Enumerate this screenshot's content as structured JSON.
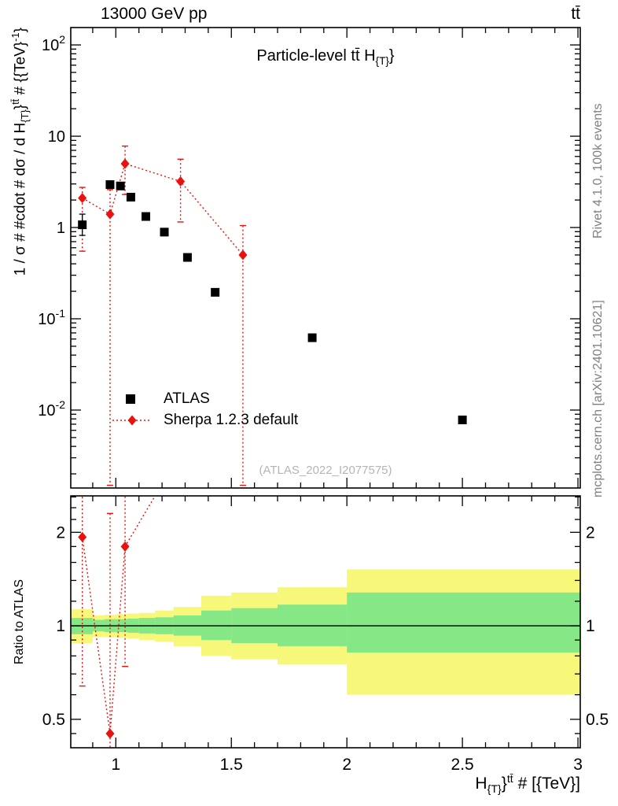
{
  "header": {
    "left": "13000 GeV pp",
    "right": "tt̄"
  },
  "side_notes": {
    "top_right": "Rivet 4.1.0,  100k events",
    "bottom_right": "mcplots.cern.ch [arXiv:2401.10621]",
    "color": "#808080"
  },
  "watermark": {
    "text": "(ATLAS_2022_I2077575)",
    "color": "#b5b5b5"
  },
  "labels": {
    "plot_title_segments": [
      {
        "t": "Particle-level tt̄  H"
      },
      {
        "t": "{T}",
        "s": "sub"
      },
      {
        "t": "}"
      }
    ],
    "xlabel_segments": [
      {
        "t": "H"
      },
      {
        "t": "{T}",
        "s": "sub"
      },
      {
        "t": "}"
      },
      {
        "t": "tt̄",
        "s": "sup"
      },
      {
        "t": " # [{TeV}]"
      }
    ],
    "ylabel_main_segments": [
      {
        "t": "1 / σ # #cdot # dσ / d H"
      },
      {
        "t": "{T}",
        "s": "sub"
      },
      {
        "t": "}"
      },
      {
        "t": "tt̄",
        "s": "sup"
      },
      {
        "t": " # {{TeV}"
      },
      {
        "t": "-1",
        "s": "sup"
      },
      {
        "t": "}"
      }
    ],
    "ylabel_ratio": "Ratio to ATLAS"
  },
  "legend": {
    "entries": [
      {
        "label": "ATLAS",
        "marker": "square",
        "color": "#000000"
      },
      {
        "label": "Sherpa 1.2.3 default",
        "marker": "diamond",
        "color": "#e8130e",
        "line": "dotted"
      }
    ]
  },
  "chart_data": {
    "type": "scatter",
    "title": "Particle-level tt̄ H_{T}}",
    "x_axis": {
      "label": "H_{T}}^{tt̄} # [{TeV}]",
      "scale": "linear",
      "min": 0.805,
      "max": 3.01,
      "major_ticks": [
        {
          "v": 1,
          "t": "1"
        },
        {
          "v": 1.5,
          "t": "1.5"
        },
        {
          "v": 2,
          "t": "2"
        },
        {
          "v": 2.5,
          "t": "2.5"
        },
        {
          "v": 3,
          "t": "3"
        }
      ],
      "minor_step": 0.1
    },
    "y_axis_main": {
      "label": "1 / σ # #cdot # dσ / d H_{T}}^{tt̄} # {{TeV}^{-1}}",
      "scale": "log",
      "min": 0.0014,
      "max": 155,
      "decade_labels": [
        {
          "v": 100,
          "base": "10",
          "exp": "2"
        },
        {
          "v": 10,
          "base": "10"
        },
        {
          "v": 1,
          "base": "1"
        },
        {
          "v": 0.1,
          "base": "10",
          "exp": "-1"
        },
        {
          "v": 0.01,
          "base": "10",
          "exp": "-2"
        }
      ]
    },
    "y_axis_ratio": {
      "label": "Ratio to ATLAS",
      "scale": "log",
      "min": 0.405,
      "max": 2.62,
      "major_ticks": [
        {
          "v": 2,
          "t": "2"
        },
        {
          "v": 1,
          "t": "1"
        },
        {
          "v": 0.5,
          "t": "0.5"
        }
      ],
      "minor_ticks": [
        0.45,
        0.6,
        0.7,
        0.8,
        0.9,
        1.2,
        1.4,
        1.6,
        1.8,
        2.2,
        2.4,
        2.6
      ]
    },
    "ratio_reference_line": 1,
    "series": [
      {
        "name": "ATLAS",
        "marker": "square",
        "color": "#000000",
        "points": [
          [
            0.855,
            1.07,
            0.82,
            1.4
          ],
          [
            0.975,
            2.95,
            2.78,
            3.14
          ],
          [
            1.02,
            2.85,
            2.69,
            3.02
          ],
          [
            1.065,
            2.15,
            2.03,
            2.28
          ],
          [
            1.13,
            1.32,
            1.25,
            1.4
          ],
          [
            1.21,
            0.89,
            0.84,
            0.94
          ],
          [
            1.31,
            0.47,
            0.445,
            0.5
          ],
          [
            1.43,
            0.195,
            0.184,
            0.207
          ],
          [
            1.85,
            0.062,
            0.058,
            0.066
          ],
          [
            2.5,
            0.0078,
            0.0072,
            0.0085
          ]
        ]
      },
      {
        "name": "Sherpa 1.2.3 default",
        "marker": "diamond",
        "color": "#e8130e",
        "line_style": "dotted",
        "points": [
          [
            0.855,
            2.1,
            0.55,
            2.75
          ],
          [
            0.975,
            1.4,
            0.0015,
            2.6
          ],
          [
            1.04,
            5.0,
            2.3,
            7.8
          ],
          [
            1.28,
            3.2,
            1.15,
            5.6
          ],
          [
            1.55,
            0.5,
            0.0015,
            1.05
          ]
        ],
        "ratio_points": [
          [
            0.855,
            1.93,
            0.64,
            3.1
          ],
          [
            0.975,
            0.45,
            0.38,
            2.3
          ],
          [
            1.04,
            1.8,
            0.74,
            3.2
          ],
          [
            1.28,
            3.6,
            null,
            null
          ],
          [
            1.55,
            2.65,
            null,
            null
          ]
        ]
      }
    ],
    "ratio_bands": {
      "yellow_color": "#f7f779",
      "green_color": "#85e785",
      "bins": [
        [
          0.805,
          0.9,
          0.88,
          1.13,
          0.94,
          1.06
        ],
        [
          0.9,
          0.95,
          0.92,
          1.08,
          0.96,
          1.045
        ],
        [
          0.95,
          1.0,
          0.92,
          1.085,
          0.955,
          1.05
        ],
        [
          1.0,
          1.05,
          0.915,
          1.09,
          0.955,
          1.05
        ],
        [
          1.05,
          1.1,
          0.91,
          1.095,
          0.95,
          1.055
        ],
        [
          1.1,
          1.17,
          0.9,
          1.1,
          0.945,
          1.06
        ],
        [
          1.17,
          1.25,
          0.89,
          1.12,
          0.94,
          1.065
        ],
        [
          1.25,
          1.37,
          0.86,
          1.15,
          0.93,
          1.08
        ],
        [
          1.37,
          1.5,
          0.8,
          1.25,
          0.9,
          1.12
        ],
        [
          1.5,
          1.7,
          0.78,
          1.28,
          0.88,
          1.14
        ],
        [
          1.7,
          2.0,
          0.75,
          1.33,
          0.86,
          1.17
        ],
        [
          2.0,
          3.01,
          0.6,
          1.52,
          0.82,
          1.28
        ]
      ]
    }
  }
}
